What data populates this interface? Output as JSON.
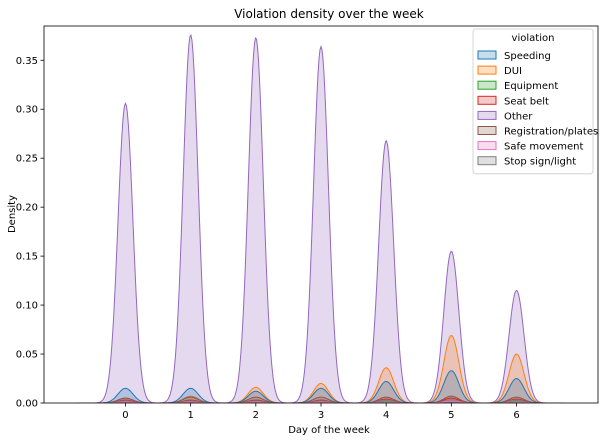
{
  "chart_data": {
    "type": "area",
    "title": "Violation density over the week",
    "xlabel": "Day of the week",
    "ylabel": "Density",
    "xlim": [
      -1.25,
      7.25
    ],
    "ylim": [
      0,
      0.385
    ],
    "xticks": [
      0,
      1,
      2,
      3,
      4,
      5,
      6
    ],
    "yticks": [
      0.0,
      0.05,
      0.1,
      0.15,
      0.2,
      0.25,
      0.3,
      0.35
    ],
    "ytick_labels": [
      "0.00",
      "0.05",
      "0.10",
      "0.15",
      "0.20",
      "0.25",
      "0.30",
      "0.35"
    ],
    "grid": false,
    "legend_title": "violation",
    "legend_position": "upper right",
    "series": [
      {
        "name": "Speeding",
        "color": "#1f77b4",
        "peaks": [
          0.015,
          0.015,
          0.012,
          0.015,
          0.022,
          0.033,
          0.025
        ]
      },
      {
        "name": "DUI",
        "color": "#ff7f0e",
        "peaks": [
          0.005,
          0.007,
          0.016,
          0.02,
          0.036,
          0.069,
          0.05
        ]
      },
      {
        "name": "Equipment",
        "color": "#2ca02c",
        "peaks": [
          0.002,
          0.002,
          0.002,
          0.002,
          0.002,
          0.003,
          0.002
        ]
      },
      {
        "name": "Seat belt",
        "color": "#d62728",
        "peaks": [
          0.003,
          0.003,
          0.003,
          0.003,
          0.004,
          0.005,
          0.004
        ]
      },
      {
        "name": "Other",
        "color": "#9467bd",
        "peaks": [
          0.306,
          0.376,
          0.373,
          0.364,
          0.268,
          0.155,
          0.115
        ]
      },
      {
        "name": "Registration/plates",
        "color": "#8c564b",
        "peaks": [
          0.005,
          0.006,
          0.006,
          0.006,
          0.006,
          0.007,
          0.006
        ]
      },
      {
        "name": "Safe movement",
        "color": "#e377c2",
        "peaks": [
          0.001,
          0.001,
          0.001,
          0.001,
          0.001,
          0.002,
          0.001
        ]
      },
      {
        "name": "Stop sign/light",
        "color": "#7f7f7f",
        "peaks": [
          0.002,
          0.002,
          0.002,
          0.002,
          0.003,
          0.003,
          0.003
        ]
      }
    ]
  }
}
